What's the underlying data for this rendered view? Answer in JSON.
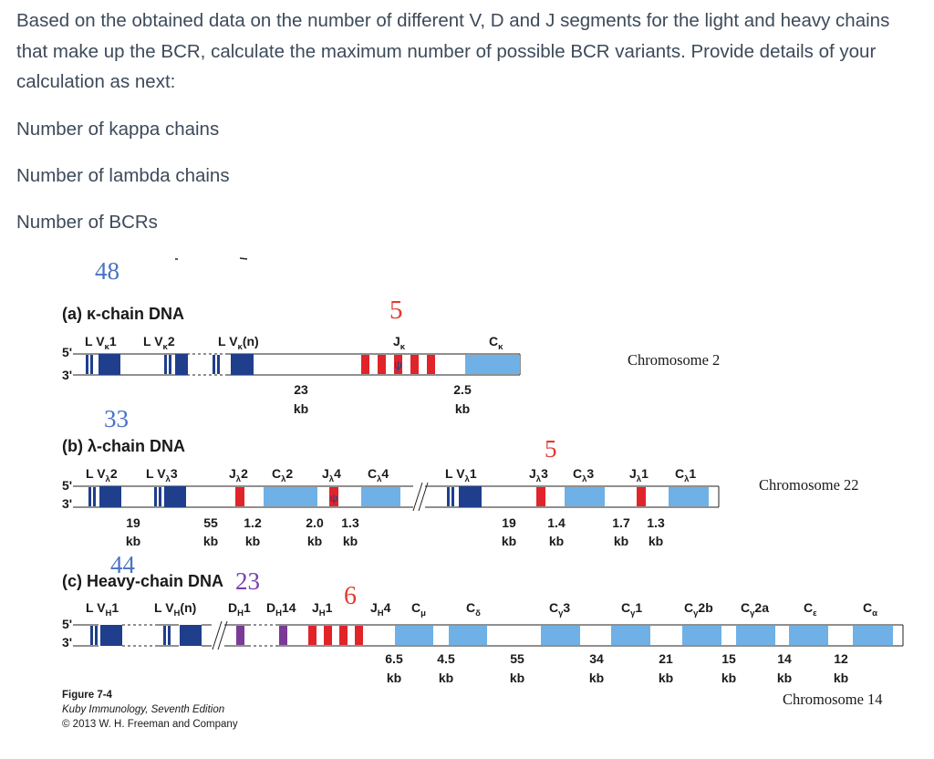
{
  "question": {
    "text": "Based on the obtained data on the number of different V, D and J segments for the light and heavy chains that make up the BCR, calculate the maximum number of possible BCR variants. Provide details of your calculation as next:",
    "line1": "Number of kappa chains",
    "line2": "Number of lambda chains",
    "line3": "Number of BCRs"
  },
  "annotations": {
    "kappa_v": "48",
    "kappa_j": "5",
    "lambda_v": "33",
    "lambda_j": "5",
    "heavy_v": "44",
    "heavy_d": "23",
    "heavy_j": "6"
  },
  "panel_a": {
    "title": "(a) κ-chain DNA",
    "five": "5'",
    "three": "3'",
    "labels": [
      {
        "main": "L V",
        "sub": "κ",
        "after": "1"
      },
      {
        "main": "L V",
        "sub": "κ",
        "after": "2"
      },
      {
        "main": "L V",
        "sub": "κ",
        "after": "(n)"
      },
      {
        "main": "J",
        "sub": "κ",
        "after": ""
      },
      {
        "main": "C",
        "sub": "κ",
        "after": ""
      }
    ],
    "distances": [
      {
        "num": "23",
        "unit": "kb"
      },
      {
        "num": "2.5",
        "unit": "kb"
      }
    ],
    "chromosome": "Chromosome 2"
  },
  "panel_b": {
    "title": "(b) λ-chain DNA",
    "five": "5'",
    "three": "3'",
    "labels": [
      {
        "main": "L V",
        "sub": "λ",
        "after": "2"
      },
      {
        "main": "L V",
        "sub": "λ",
        "after": "3"
      },
      {
        "main": "J",
        "sub": "λ",
        "after": "2"
      },
      {
        "main": "C",
        "sub": "λ",
        "after": "2"
      },
      {
        "main": "J",
        "sub": "λ",
        "after": "4"
      },
      {
        "main": "C",
        "sub": "λ",
        "after": "4"
      },
      {
        "main": "L V",
        "sub": "λ",
        "after": "1"
      },
      {
        "main": "J",
        "sub": "λ",
        "after": "3"
      },
      {
        "main": "C",
        "sub": "λ",
        "after": "3"
      },
      {
        "main": "J",
        "sub": "λ",
        "after": "1"
      },
      {
        "main": "C",
        "sub": "λ",
        "after": "1"
      }
    ],
    "distances": [
      {
        "num": "19",
        "unit": "kb"
      },
      {
        "num": "55",
        "unit": "kb"
      },
      {
        "num": "1.2",
        "unit": "kb"
      },
      {
        "num": "2.0",
        "unit": "kb"
      },
      {
        "num": "1.3",
        "unit": "kb"
      },
      {
        "num": "19",
        "unit": "kb"
      },
      {
        "num": "1.4",
        "unit": "kb"
      },
      {
        "num": "1.7",
        "unit": "kb"
      },
      {
        "num": "1.3",
        "unit": "kb"
      }
    ],
    "chromosome": "Chromosome 22"
  },
  "panel_c": {
    "title": "(c) Heavy-chain DNA",
    "five": "5'",
    "three": "3'",
    "labels": [
      {
        "main": "L V",
        "sub": "H",
        "after": "1"
      },
      {
        "main": "L V",
        "sub": "H",
        "after": "(n)"
      },
      {
        "main": "D",
        "sub": "H",
        "after": "1"
      },
      {
        "main": "D",
        "sub": "H",
        "after": "14"
      },
      {
        "main": "J",
        "sub": "H",
        "after": "1"
      },
      {
        "main": "J",
        "sub": "H",
        "after": "4"
      },
      {
        "main": "C",
        "sub": "μ",
        "after": ""
      },
      {
        "main": "C",
        "sub": "δ",
        "after": ""
      },
      {
        "main": "C",
        "sub": "γ",
        "after": "3"
      },
      {
        "main": "C",
        "sub": "γ",
        "after": "1"
      },
      {
        "main": "C",
        "sub": "γ",
        "after": "2b"
      },
      {
        "main": "C",
        "sub": "γ",
        "after": "2a"
      },
      {
        "main": "C",
        "sub": "ε",
        "after": ""
      },
      {
        "main": "C",
        "sub": "α",
        "after": ""
      }
    ],
    "distances": [
      {
        "num": "6.5",
        "unit": "kb"
      },
      {
        "num": "4.5",
        "unit": "kb"
      },
      {
        "num": "55",
        "unit": "kb"
      },
      {
        "num": "34",
        "unit": "kb"
      },
      {
        "num": "21",
        "unit": "kb"
      },
      {
        "num": "15",
        "unit": "kb"
      },
      {
        "num": "14",
        "unit": "kb"
      },
      {
        "num": "12",
        "unit": "kb"
      }
    ],
    "chromosome": "Chromosome 14"
  },
  "caption": {
    "figure": "Figure 7-4",
    "book": "Kuby Immunology, Seventh Edition",
    "copyright": "© 2013 W. H. Freeman and Company"
  },
  "colors": {
    "v_segment": "#1f3f8c",
    "j_segment": "#e0242a",
    "d_segment": "#7b3a96",
    "c_segment": "#6fb1e6",
    "text": "#3d4a5a",
    "handwritten_blue": "#4a72c4",
    "handwritten_red": "#e23b2e",
    "handwritten_purple": "#7a3fb0"
  }
}
